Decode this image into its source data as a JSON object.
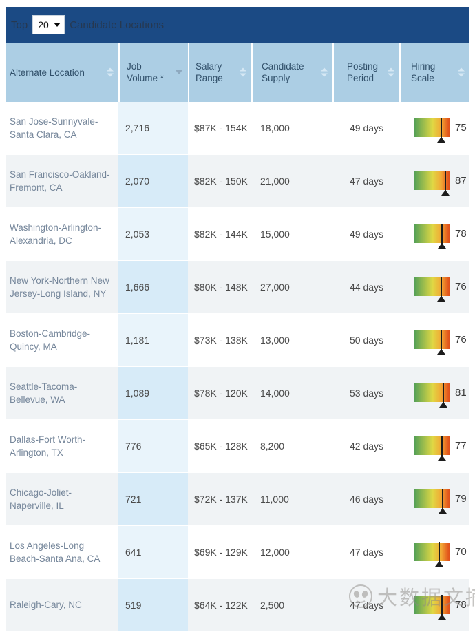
{
  "toolbar": {
    "top_label": "Top",
    "count_value": "20",
    "suffix_label": "Candidate Locations"
  },
  "table": {
    "columns": [
      {
        "label": "Alternate Location",
        "sort": "both"
      },
      {
        "label": "Job Volume *",
        "sort": "desc"
      },
      {
        "label": "Salary Range",
        "sort": "both"
      },
      {
        "label": "Candidate Supply",
        "sort": "both"
      },
      {
        "label": "Posting Period",
        "sort": "both"
      },
      {
        "label": "Hiring Scale",
        "sort": "both"
      }
    ],
    "rows": [
      {
        "location": "San Jose-Sunnyvale-Santa Clara, CA",
        "job_volume": "2,716",
        "salary_range": "$87K - 154K",
        "candidate_supply": "18,000",
        "posting_period": "49 days",
        "hiring_scale": 75
      },
      {
        "location": "San Francisco-Oakland-Fremont, CA",
        "job_volume": "2,070",
        "salary_range": "$82K - 150K",
        "candidate_supply": "21,000",
        "posting_period": "47 days",
        "hiring_scale": 87
      },
      {
        "location": "Washington-Arlington-Alexandria, DC",
        "job_volume": "2,053",
        "salary_range": "$82K - 144K",
        "candidate_supply": "15,000",
        "posting_period": "49 days",
        "hiring_scale": 78
      },
      {
        "location": "New York-Northern New Jersey-Long Island, NY",
        "job_volume": "1,666",
        "salary_range": "$80K - 148K",
        "candidate_supply": "27,000",
        "posting_period": "44 days",
        "hiring_scale": 76
      },
      {
        "location": "Boston-Cambridge-Quincy, MA",
        "job_volume": "1,181",
        "salary_range": "$73K - 138K",
        "candidate_supply": "13,000",
        "posting_period": "50 days",
        "hiring_scale": 76
      },
      {
        "location": "Seattle-Tacoma-Bellevue, WA",
        "job_volume": "1,089",
        "salary_range": "$78K - 120K",
        "candidate_supply": "14,000",
        "posting_period": "53 days",
        "hiring_scale": 81
      },
      {
        "location": "Dallas-Fort Worth-Arlington, TX",
        "job_volume": "776",
        "salary_range": "$65K - 128K",
        "candidate_supply": "8,200",
        "posting_period": "42 days",
        "hiring_scale": 77
      },
      {
        "location": "Chicago-Joliet-Naperville, IL",
        "job_volume": "721",
        "salary_range": "$72K - 137K",
        "candidate_supply": "11,000",
        "posting_period": "46 days",
        "hiring_scale": 79
      },
      {
        "location": "Los Angeles-Long Beach-Santa Ana, CA",
        "job_volume": "641",
        "salary_range": "$69K - 129K",
        "candidate_supply": "12,000",
        "posting_period": "47 days",
        "hiring_scale": 70
      },
      {
        "location": "Raleigh-Cary, NC",
        "job_volume": "519",
        "salary_range": "$64K - 122K",
        "candidate_supply": "2,500",
        "posting_period": "47 days",
        "hiring_scale": 78
      }
    ]
  },
  "watermark": {
    "text": "大数据文摘"
  },
  "colors": {
    "topbar_bg": "#1b4a84",
    "header_bg": "#accee4",
    "header_text": "#31506a",
    "row_alt_bg": "#f0f3f5",
    "sorted_col_bg": "#e9f4fb",
    "sorted_col_alt_bg": "#d7ebf8",
    "location_text": "#76879b",
    "gauge_gradient": [
      "#4f9e57",
      "#e0d844",
      "#f2a634",
      "#dc4a16"
    ],
    "needle": "#1c1c1c"
  }
}
